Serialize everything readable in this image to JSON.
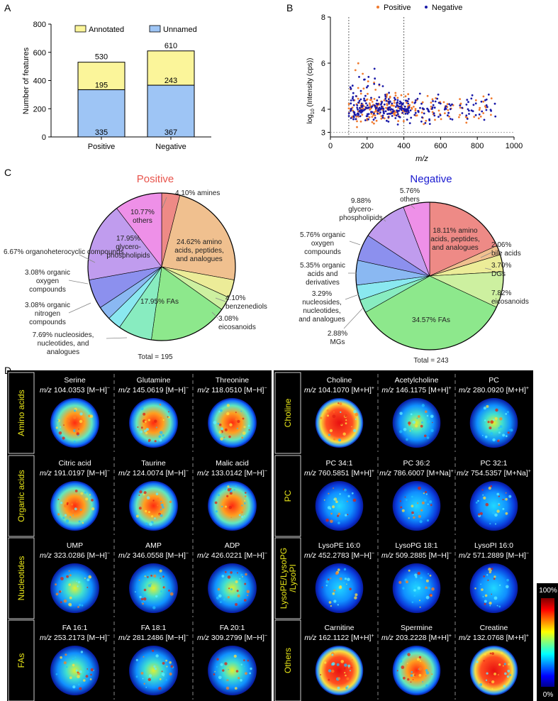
{
  "panels": {
    "a": "A",
    "b": "B",
    "c": "C",
    "d": "D"
  },
  "colors": {
    "annotated": "#fbf59a",
    "unnamed": "#9ec5f5",
    "positive": "#f07a2e",
    "negative": "#1a1aa8",
    "positive_title": "#e8544c",
    "negative_title": "#1a1ad0",
    "label_yellow": "#e8e619"
  },
  "chart_data": [
    {
      "id": "A",
      "type": "bar",
      "stacked": true,
      "categories": [
        "Positive",
        "Negative"
      ],
      "series": [
        {
          "name": "Unnamed",
          "values": [
            335,
            367
          ]
        },
        {
          "name": "Annotated",
          "values": [
            195,
            243
          ]
        }
      ],
      "totals": [
        530,
        610
      ],
      "total_labels": [
        "530",
        "610"
      ],
      "annotated_labels": [
        "195",
        "243"
      ],
      "unnamed_labels": [
        "335",
        "367"
      ],
      "legend": [
        "Annotated",
        "Unnamed"
      ],
      "legend_position": "top",
      "ylabel": "Number of features",
      "ylim": [
        0,
        800
      ],
      "yticks": [
        0,
        200,
        400,
        600,
        800
      ],
      "ytick_labels": [
        "0",
        "200",
        "400",
        "600",
        "800"
      ]
    },
    {
      "id": "B",
      "type": "scatter",
      "series_names": [
        "Positive",
        "Negative"
      ],
      "xlabel": "m/z",
      "ylabel_main": "log",
      "ylabel_sub": "10",
      "ylabel_rest": " (Intensity (cps))",
      "xlim": [
        0,
        1000
      ],
      "ylim": [
        2.8,
        8
      ],
      "xticks": [
        0,
        200,
        400,
        600,
        800,
        1000
      ],
      "xtick_labels": [
        "0",
        "200",
        "400",
        "600",
        "800",
        "1000"
      ],
      "yticks": [
        3,
        4,
        6,
        8
      ],
      "ytick_labels": [
        "3",
        "4",
        "6",
        "8"
      ],
      "vlines_x": [
        100,
        400
      ],
      "hline_y": 3,
      "legend_position": "top",
      "positive_mz_range": [
        95,
        900
      ],
      "negative_mz_range": [
        95,
        900
      ],
      "intensity_center": 4.0,
      "intensity_max": 6.3
    },
    {
      "id": "C-positive",
      "type": "pie",
      "title": "Positive",
      "total_label": "Total = 195",
      "slices": [
        {
          "label": "amines",
          "value": 4.1,
          "text": "4.10% amines",
          "color": "#ee8a86"
        },
        {
          "label": "amino acids, peptides, and analogues",
          "value": 24.62,
          "text": "24.62% amino acids, peptides, and analogues",
          "color": "#f0c08f"
        },
        {
          "label": "benzenediols",
          "value": 4.1,
          "text": "4.10% benzenediols",
          "color": "#ecec98"
        },
        {
          "label": "eicosanoids",
          "value": 3.08,
          "text": "3.08% eicosanoids",
          "color": "#cdf0a0"
        },
        {
          "label": "FAs",
          "value": 17.95,
          "text": "17.95% FAs",
          "color": "#8de88c"
        },
        {
          "label": "nucleosides, nucleotides, and analogues",
          "value": 7.69,
          "text": "7.69% nucleosides, nucleotides, and analogues",
          "color": "#88ecc0"
        },
        {
          "label": "organic nitrogen compounds",
          "value": 3.08,
          "text": "3.08% organic nitrogen compounds",
          "color": "#8ae8f0"
        },
        {
          "label": "organic oxygen compounds",
          "value": 3.08,
          "text": "3.08% organic oxygen compounds",
          "color": "#8ab8f2"
        },
        {
          "label": "organoheterocyclic compounds",
          "value": 6.67,
          "text": "6.67% organoheterocyclic compounds",
          "color": "#8c90ee"
        },
        {
          "label": "glycerophospholipids",
          "value": 17.95,
          "text": "17.95% glycero-phospholipids",
          "color": "#c09cee"
        },
        {
          "label": "others",
          "value": 10.77,
          "text": "10.77% others",
          "color": "#ee90e8"
        }
      ]
    },
    {
      "id": "C-negative",
      "type": "pie",
      "title": "Negative",
      "total_label": "Total = 243",
      "slices": [
        {
          "label": "amino acids, peptides, and analogues",
          "value": 18.11,
          "text": "18.11% amino acids, peptides, and analogues",
          "color": "#ee8a86"
        },
        {
          "label": "bile acids",
          "value": 2.06,
          "text": "2.06% bile acids",
          "color": "#f0c08f"
        },
        {
          "label": "DGs",
          "value": 3.7,
          "text": "3.70% DGs",
          "color": "#ecec98"
        },
        {
          "label": "eicosanoids",
          "value": 7.82,
          "text": "7.82% eicosanoids",
          "color": "#cdf0a0"
        },
        {
          "label": "FAs",
          "value": 34.57,
          "text": "34.57% FAs",
          "color": "#8de88c"
        },
        {
          "label": "MGs",
          "value": 2.88,
          "text": "2.88% MGs",
          "color": "#88ecc0"
        },
        {
          "label": "nucleosides, nucleotides, and analogues",
          "value": 3.29,
          "text": "3.29% nucleosides, nucleotides, and analogues",
          "color": "#8ae8f0"
        },
        {
          "label": "organic acids and derivatives",
          "value": 5.35,
          "text": "5.35% organic acids and derivatives",
          "color": "#8ab8f2"
        },
        {
          "label": "organic oxygen compounds",
          "value": 5.76,
          "text": "5.76% organic oxygen compounds",
          "color": "#8c90ee"
        },
        {
          "label": "glycerophospholipids",
          "value": 9.88,
          "text": "9.88% glycero-phospholipids",
          "color": "#c09cee"
        },
        {
          "label": "others",
          "value": 5.76,
          "text": "5.76% others",
          "color": "#ee90e8"
        }
      ]
    }
  ],
  "imaging": {
    "left_groups": [
      {
        "label": "Amino acids",
        "tiles": [
          {
            "name": "Serine",
            "mz": "104.0353",
            "ion": "[M−H]",
            "charge": "−"
          },
          {
            "name": "Glutamine",
            "mz": "145.0619",
            "ion": "[M−H]",
            "charge": "−"
          },
          {
            "name": "Threonine",
            "mz": "118.0510",
            "ion": "[M−H]",
            "charge": "−"
          }
        ]
      },
      {
        "label": "Organic acids",
        "tiles": [
          {
            "name": "Citric acid",
            "mz": "191.0197",
            "ion": "[M−H]",
            "charge": "−"
          },
          {
            "name": "Taurine",
            "mz": "124.0074",
            "ion": "[M−H]",
            "charge": "−"
          },
          {
            "name": "Malic acid",
            "mz": "133.0142",
            "ion": "[M−H]",
            "charge": "−"
          }
        ]
      },
      {
        "label": "Nucleotides",
        "tiles": [
          {
            "name": "UMP",
            "mz": "323.0286",
            "ion": "[M−H]",
            "charge": "−"
          },
          {
            "name": "AMP",
            "mz": "346.0558",
            "ion": "[M−H]",
            "charge": "−"
          },
          {
            "name": "ADP",
            "mz": "426.0221",
            "ion": "[M−H]",
            "charge": "−"
          }
        ]
      },
      {
        "label": "FAs",
        "tiles": [
          {
            "name": "FA 16:1",
            "mz": "253.2173",
            "ion": "[M−H]",
            "charge": "−"
          },
          {
            "name": "FA 18:1",
            "mz": "281.2486",
            "ion": "[M−H]",
            "charge": "−"
          },
          {
            "name": "FA 20:1",
            "mz": "309.2799",
            "ion": "[M−H]",
            "charge": "−"
          }
        ]
      }
    ],
    "right_groups": [
      {
        "label": "Choline",
        "tiles": [
          {
            "name": "Choline",
            "mz": "104.1070",
            "ion": "[M+H]",
            "charge": "+"
          },
          {
            "name": "Acetylcholine",
            "mz": "146.1175",
            "ion": "[M+H]",
            "charge": "+"
          },
          {
            "name": "PC",
            "mz": "280.0920",
            "ion": "[M+H]",
            "charge": "+"
          }
        ]
      },
      {
        "label": "PC",
        "tiles": [
          {
            "name": "PC 34:1",
            "mz": "760.5851",
            "ion": "[M+H]",
            "charge": "+"
          },
          {
            "name": "PC 36:2",
            "mz": "786.6007",
            "ion": "[M+Na]",
            "charge": "+"
          },
          {
            "name": "PC 32:1",
            "mz": "754.5357",
            "ion": "[M+Na]",
            "charge": "+"
          }
        ]
      },
      {
        "label": "LysoPE/LysoPG",
        "label2": "/LysoPI",
        "tiles": [
          {
            "name": "LysoPE 16:0",
            "mz": "452.2783",
            "ion": "[M−H]",
            "charge": "−"
          },
          {
            "name": "LysoPG 18:1",
            "mz": "509.2885",
            "ion": "[M−H]",
            "charge": "−"
          },
          {
            "name": "LysoPI 16:0",
            "mz": "571.2889",
            "ion": "[M−H]",
            "charge": "−"
          }
        ]
      },
      {
        "label": "Others",
        "tiles": [
          {
            "name": "Carnitine",
            "mz": "162.1122",
            "ion": "[M+H]",
            "charge": "+"
          },
          {
            "name": "Spermine",
            "mz": "203.2228",
            "ion": "[M+H]",
            "charge": "+"
          },
          {
            "name": "Creatine",
            "mz": "132.0768",
            "ion": "[M+H]",
            "charge": "+"
          }
        ]
      }
    ],
    "mz_prefix": "m/z",
    "colorbar_max": "100%",
    "colorbar_min": "0%"
  }
}
